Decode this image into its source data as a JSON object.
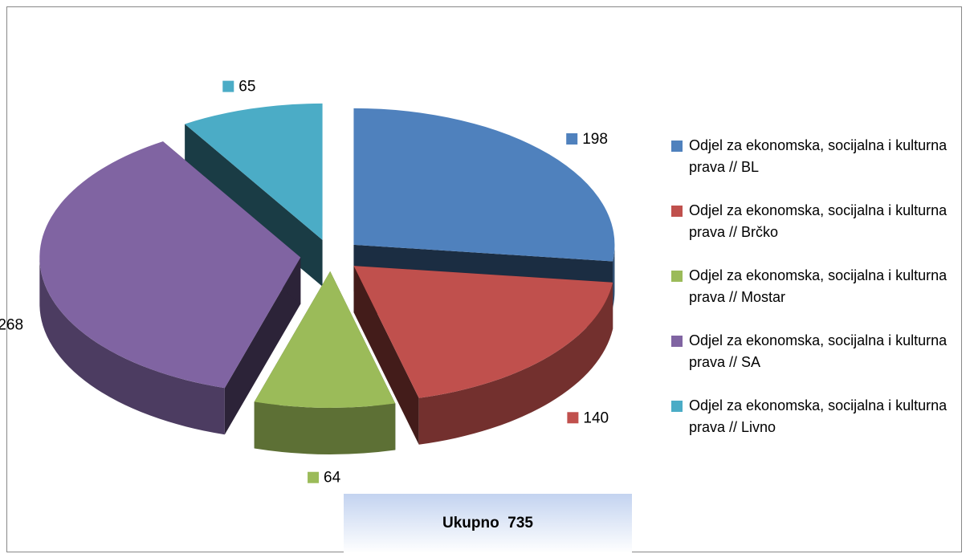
{
  "chart_data": {
    "type": "pie",
    "categories": [
      "Odjel za ekonomska, socijalna i kulturna prava // BL",
      "Odjel za ekonomska, socijalna i kulturna prava // Brčko",
      "Odjel za ekonomska, socijalna i kulturna prava // Mostar",
      "Odjel za ekonomska, socijalna i kulturna prava // SA",
      "Odjel za ekonomska, socijalna i kulturna prava // Livno"
    ],
    "values": [
      198,
      140,
      64,
      268,
      65
    ],
    "colors": [
      "#4f81bd",
      "#c0504d",
      "#9bbb59",
      "#8064a2",
      "#4bacc6"
    ],
    "legend": "right",
    "annotation": "Ukupno  735"
  }
}
